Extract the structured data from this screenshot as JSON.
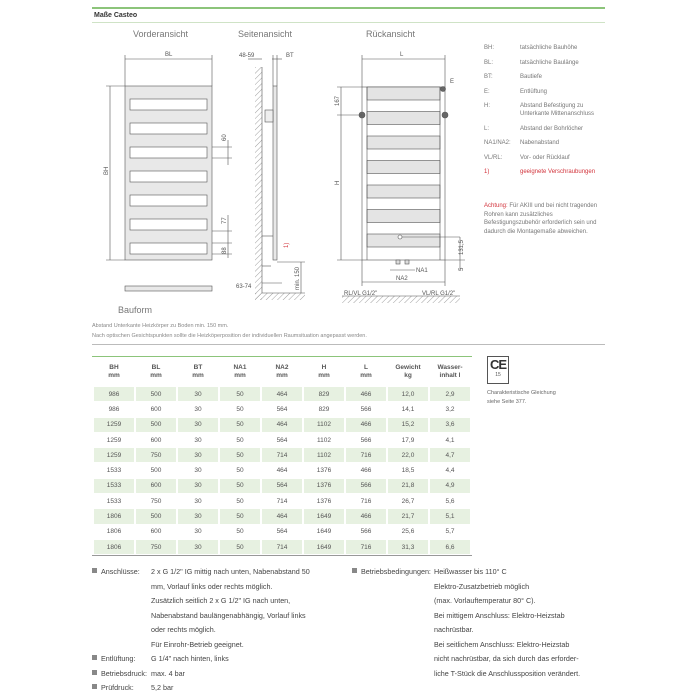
{
  "header": {
    "title": "Maße Casteo"
  },
  "views": {
    "front": "Vorderansicht",
    "side": "Seitenansicht",
    "rear": "Rückansicht",
    "bauform": "Bauform"
  },
  "drawing_labels": {
    "bl": "BL",
    "bh": "BH",
    "d60": "60",
    "d77": "77",
    "d88": "88",
    "d4859": "48-59",
    "bt": "BT",
    "note1": "1)",
    "min150": "min. 150",
    "d6374": "63-74",
    "l": "L",
    "e": "E",
    "d167": "167",
    "h": "H",
    "d1315": "131,5",
    "d5": "5",
    "na1": "NA1",
    "na2": "NA2",
    "rlvl": "RL/VL G1/2\"",
    "vlrl": "VL/RL G1/2\""
  },
  "legend": [
    {
      "key": "BH:",
      "text": "tatsächliche Bauhöhe"
    },
    {
      "key": "BL:",
      "text": "tatsächliche Baulänge"
    },
    {
      "key": "BT:",
      "text": "Bautiefe"
    },
    {
      "key": "E:",
      "text": "Entlüftung"
    },
    {
      "key": "H:",
      "text": "Abstand Befestigung zu Unterkante Mittenanschluss"
    },
    {
      "key": "L:",
      "text": "Abstand der Bohrlöcher"
    },
    {
      "key": "NA1/NA2:",
      "text": "Nabenabstand"
    },
    {
      "key": "VL/RL:",
      "text": "Vor- oder Rücklauf"
    },
    {
      "key": "1)",
      "text": "geeignete Verschraubungen"
    }
  ],
  "achtung": {
    "label": "Achtung:",
    "text": " Für AKIII und bei nicht tragenden Rohren kann zusätzliches Befestigungszubehör erforderlich sein und dadurch die Montagemaße abweichen."
  },
  "notes": [
    "Abstand Unterkante Heizkörper zu Boden min. 150 mm.",
    "Nach optischen Gesichtspunkten sollte die Heizköperposition der individuellen Raumsituation angepasst werden."
  ],
  "table": {
    "headers": [
      [
        "BH",
        "mm"
      ],
      [
        "BL",
        "mm"
      ],
      [
        "BT",
        "mm"
      ],
      [
        "NA1",
        "mm"
      ],
      [
        "NA2",
        "mm"
      ],
      [
        "H",
        "mm"
      ],
      [
        "L",
        "mm"
      ],
      [
        "Gewicht",
        "kg"
      ],
      [
        "Wasser-",
        "inhalt l"
      ]
    ],
    "rows": [
      [
        "986",
        "500",
        "30",
        "50",
        "464",
        "829",
        "466",
        "12,0",
        "2,9"
      ],
      [
        "986",
        "600",
        "30",
        "50",
        "564",
        "829",
        "566",
        "14,1",
        "3,2"
      ],
      [
        "1259",
        "500",
        "30",
        "50",
        "464",
        "1102",
        "466",
        "15,2",
        "3,6"
      ],
      [
        "1259",
        "600",
        "30",
        "50",
        "564",
        "1102",
        "566",
        "17,9",
        "4,1"
      ],
      [
        "1259",
        "750",
        "30",
        "50",
        "714",
        "1102",
        "716",
        "22,0",
        "4,7"
      ],
      [
        "1533",
        "500",
        "30",
        "50",
        "464",
        "1376",
        "466",
        "18,5",
        "4,4"
      ],
      [
        "1533",
        "600",
        "30",
        "50",
        "564",
        "1376",
        "566",
        "21,8",
        "4,9"
      ],
      [
        "1533",
        "750",
        "30",
        "50",
        "714",
        "1376",
        "716",
        "26,7",
        "5,6"
      ],
      [
        "1806",
        "500",
        "30",
        "50",
        "464",
        "1649",
        "466",
        "21,7",
        "5,1"
      ],
      [
        "1806",
        "600",
        "30",
        "50",
        "564",
        "1649",
        "566",
        "25,6",
        "5,7"
      ],
      [
        "1806",
        "750",
        "30",
        "50",
        "714",
        "1649",
        "716",
        "31,3",
        "6,6"
      ]
    ]
  },
  "ce": {
    "mark": "CE",
    "number": "15",
    "text1": "Charakteristische Gleichung",
    "text2": "siehe Seite 377."
  },
  "specs_left": [
    {
      "label": "Anschlüsse:",
      "lines": [
        "2 x G 1/2\" IG mittig nach unten, Nabenabstand 50",
        "mm, Vorlauf links oder rechts möglich.",
        "Zusätzlich seitlich 2 x G 1/2\" IG nach unten,",
        "Nabenabstand baulängenabhängig, Vorlauf links",
        "oder rechts möglich.",
        "Für Einrohr-Betrieb geeignet."
      ]
    },
    {
      "label": "Entlüftung:",
      "lines": [
        "G 1/4\" nach hinten, links"
      ]
    },
    {
      "label": "Betriebsdruck:",
      "lines": [
        "max. 4 bar"
      ]
    },
    {
      "label": "Prüfdruck:",
      "lines": [
        "5,2 bar"
      ]
    }
  ],
  "specs_right": {
    "label": "Betriebsbedingungen:",
    "lines": [
      "Heißwasser bis 110° C",
      "Elektro-Zusatzbetrieb möglich",
      "(max. Vorlauftemperatur 80° C).",
      "Bei mittigem Anschluss: Elektro-Heizstab",
      "nachrüstbar.",
      "Bei seitlichem Anschluss: Elektro-Heizstab",
      "nicht nachrüstbar, da sich durch das erforder-",
      "liche T-Stück die Anschlussposition verändert."
    ]
  }
}
